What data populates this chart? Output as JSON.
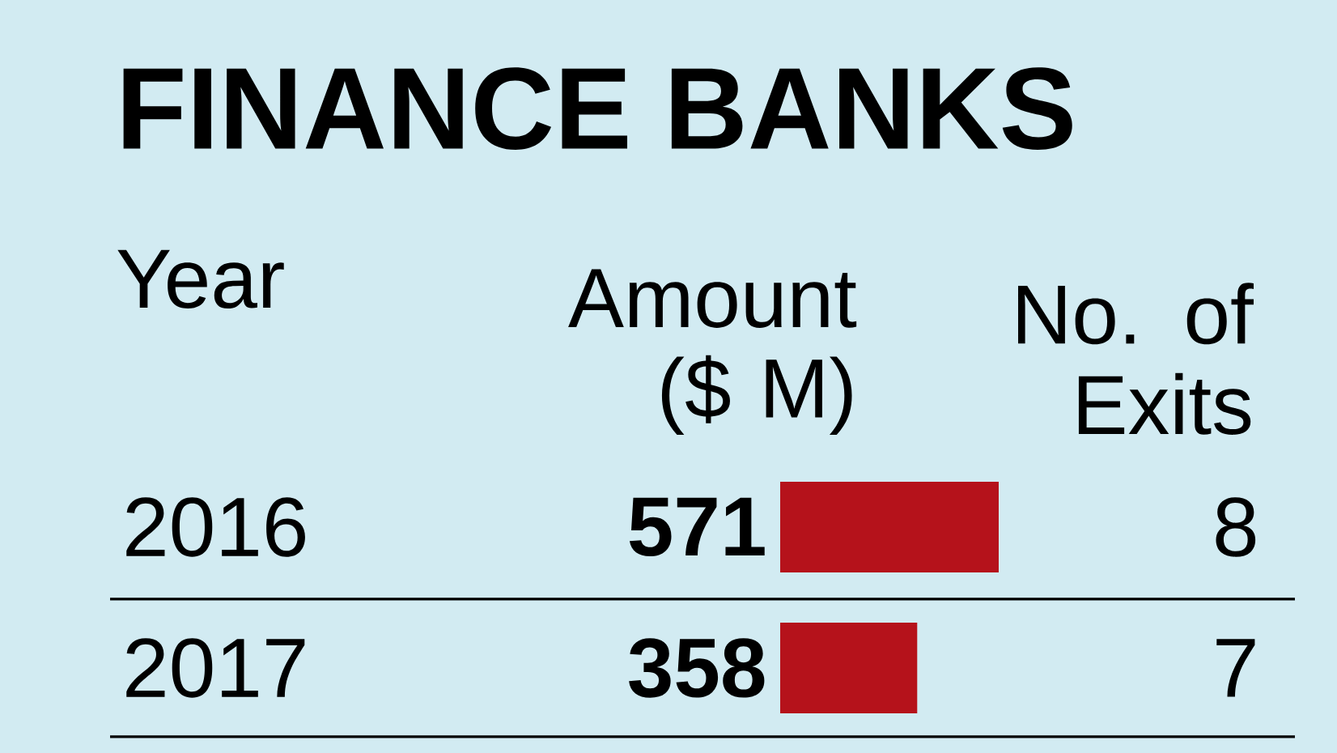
{
  "chart_data": [
    {
      "type": "bar",
      "orientation": "horizontal",
      "title": "FINANCE BANKS",
      "ylabel": "Year",
      "xlabel": "Amount ($ M)",
      "categories": [
        "2016",
        "2017"
      ],
      "values": [
        571,
        358
      ],
      "color": "#b5121b",
      "data_labels": true
    },
    {
      "type": "other",
      "title": "No. of Exits",
      "values": [
        8,
        7
      ],
      "data_labels": true
    }
  ]
}
